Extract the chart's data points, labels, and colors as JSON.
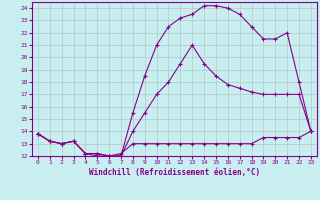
{
  "xlabel": "Windchill (Refroidissement éolien,°C)",
  "background_color": "#c8eef0",
  "grid_color": "#b0c8cc",
  "line_color": "#880088",
  "xlim": [
    -0.5,
    23.5
  ],
  "ylim": [
    12,
    24.5
  ],
  "yticks": [
    12,
    13,
    14,
    15,
    16,
    17,
    18,
    19,
    20,
    21,
    22,
    23,
    24
  ],
  "xticks": [
    0,
    1,
    2,
    3,
    4,
    5,
    6,
    7,
    8,
    9,
    10,
    11,
    12,
    13,
    14,
    15,
    16,
    17,
    18,
    19,
    20,
    21,
    22,
    23
  ],
  "line1_x": [
    0,
    1,
    2,
    3,
    4,
    5,
    6,
    7,
    8,
    9,
    10,
    11,
    12,
    13,
    14,
    15,
    16,
    17,
    18,
    19,
    20,
    21,
    22,
    23
  ],
  "line1_y": [
    13.8,
    13.2,
    13.0,
    13.2,
    12.2,
    12.0,
    12.0,
    12.2,
    13.0,
    13.0,
    13.0,
    13.0,
    13.0,
    13.0,
    13.0,
    13.0,
    13.0,
    13.0,
    13.0,
    13.5,
    13.5,
    13.5,
    13.5,
    14.0
  ],
  "line2_x": [
    0,
    1,
    2,
    3,
    4,
    5,
    6,
    7,
    8,
    9,
    10,
    11,
    12,
    13,
    14,
    15,
    16,
    17,
    18,
    19,
    20,
    21,
    22,
    23
  ],
  "line2_y": [
    13.8,
    13.2,
    13.0,
    13.2,
    12.2,
    12.2,
    12.0,
    12.0,
    14.0,
    15.5,
    17.0,
    18.0,
    19.5,
    21.0,
    19.5,
    18.5,
    17.8,
    17.5,
    17.2,
    17.0,
    17.0,
    17.0,
    17.0,
    14.0
  ],
  "line3_x": [
    0,
    1,
    2,
    3,
    4,
    5,
    6,
    7,
    8,
    9,
    10,
    11,
    12,
    13,
    14,
    15,
    16,
    17,
    18,
    19,
    20,
    21,
    22,
    23
  ],
  "line3_y": [
    13.8,
    13.2,
    13.0,
    13.2,
    12.2,
    12.2,
    12.0,
    12.0,
    15.5,
    18.5,
    21.0,
    22.5,
    23.2,
    23.5,
    24.2,
    24.2,
    24.0,
    23.5,
    22.5,
    21.5,
    21.5,
    22.0,
    18.0,
    14.0
  ]
}
